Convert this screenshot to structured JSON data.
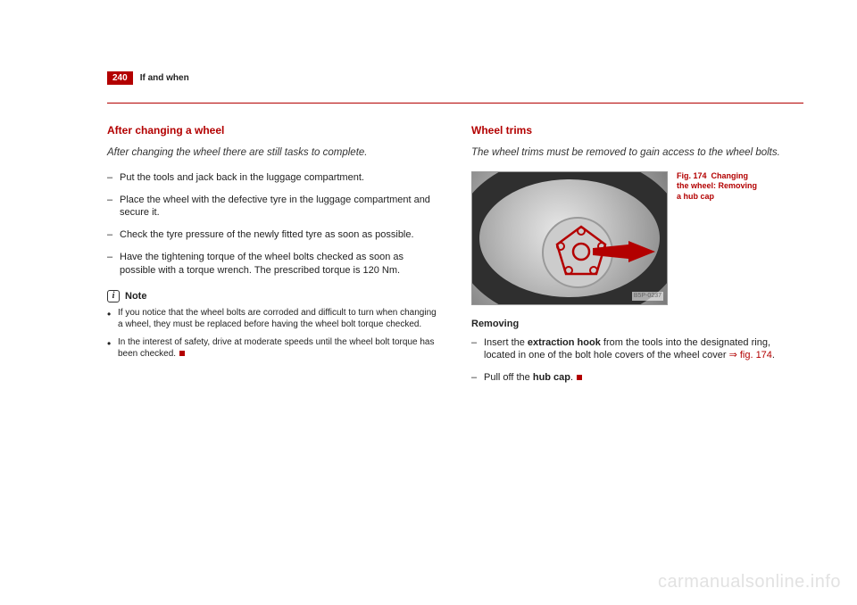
{
  "header": {
    "page_number": "240",
    "running_head": "If and when"
  },
  "left": {
    "title": "After changing a wheel",
    "lede": "After changing the wheel there are still tasks to complete.",
    "items": [
      "Put the tools and jack back in the luggage compartment.",
      "Place the wheel with the defective tyre in the luggage compartment and secure it.",
      "Check the tyre pressure of the newly fitted tyre as soon as possible.",
      "Have the tightening torque of the wheel bolts checked as soon as possible with a torque wrench. The prescribed torque is 120 Nm."
    ],
    "note_label": "Note",
    "note_icon_char": "i",
    "notes": [
      "If you notice that the wheel bolts are corroded and difficult to turn when changing a wheel, they must be replaced before having the wheel bolt torque checked.",
      "In the interest of safety, drive at moderate speeds until the wheel bolt torque has been checked."
    ]
  },
  "right": {
    "title": "Wheel trims",
    "lede": "The wheel trims must be removed to gain access to the wheel bolts.",
    "figure": {
      "img_code": "B5P-0237",
      "caption_ref": "Fig. 174",
      "caption_text": "Changing the wheel: Removing a hub cap",
      "overlay_stroke": "#b30000",
      "arrow_fill": "#b30000"
    },
    "removing_heading": "Removing",
    "removing_items_html": [
      "Insert the <b>extraction hook</b> from the tools into the designated ring, located in one of the bolt hole covers of the wheel cover <span class=\"ref\">⇒ fig. 174</span>.",
      "Pull off the <b>hub cap</b>."
    ]
  },
  "watermark": "carmanualsonline.info",
  "colors": {
    "accent": "#b30000",
    "text": "#222222",
    "watermark": "#e2e2e2"
  }
}
